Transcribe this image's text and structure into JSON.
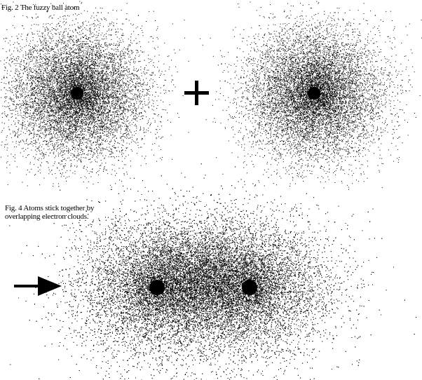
{
  "figure_top": {
    "caption": "Fig. 2 The fuzzy ball atom",
    "operator_symbol": "plus-symbol"
  },
  "figure_bottom": {
    "caption_line1": "Fig. 4 Atoms stick together by",
    "caption_line2": "overlapping electron clouds.",
    "pointer_symbol": "arrow-right-icon"
  },
  "colors": {
    "ink": "#000000",
    "background": "#ffffff"
  }
}
